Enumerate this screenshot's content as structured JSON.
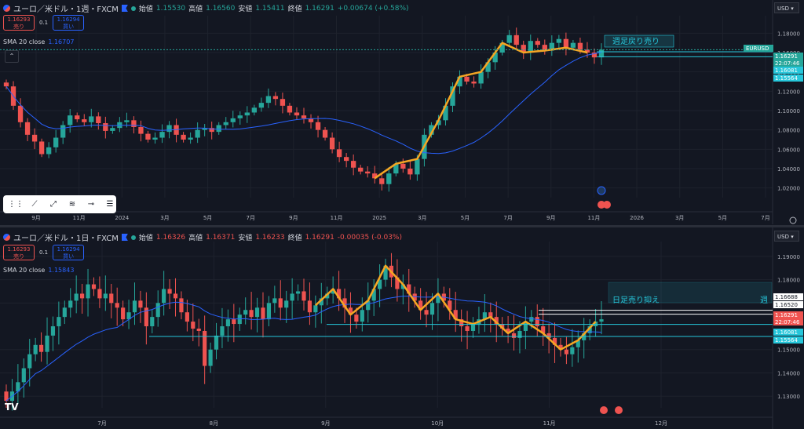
{
  "top": {
    "symbol": "ユーロ／米ドル・1週・FXCM",
    "open_label": "始値",
    "open": "1.15530",
    "high_label": "高値",
    "high": "1.16560",
    "low_label": "安値",
    "low": "1.15411",
    "close_label": "終値",
    "close": "1.16291",
    "change": "+0.00674 (+0.58%)",
    "sell_price": "1.16293",
    "sell_label": "売り",
    "spread": "0.1",
    "buy_price": "1.16294",
    "buy_label": "買い",
    "sma_label": "SMA 20 close",
    "sma_value": "1.16707",
    "currency": "USD"
  },
  "bottom": {
    "symbol": "ユーロ／米ドル・1日・FXCM",
    "open_label": "始値",
    "open": "1.16326",
    "high_label": "高値",
    "high": "1.16371",
    "low_label": "安値",
    "low": "1.16233",
    "close_label": "終値",
    "close": "1.16291",
    "change": "-0.00035 (-0.03%)",
    "sell_price": "1.16293",
    "sell_label": "売り",
    "spread": "0.1",
    "buy_price": "1.16294",
    "buy_label": "買い",
    "sma_label": "SMA 20 close",
    "sma_value": "1.15843",
    "currency": "USD"
  },
  "colors": {
    "bg": "#131722",
    "up": "#26a69a",
    "down": "#ef5350",
    "sma": "#2962ff",
    "zigzag": "#f5a623",
    "hline": "#26c6da",
    "grid": "#1e222d"
  },
  "chart_data": [
    {
      "type": "candlestick",
      "symbol": "EURUSD",
      "timeframe": "1W",
      "x_tick_labels": [
        "9月",
        "11月",
        "2024",
        "3月",
        "5月",
        "7月",
        "9月",
        "11月",
        "2025",
        "3月",
        "5月",
        "7月",
        "9月",
        "11月",
        "2026",
        "3月",
        "5月",
        "7月"
      ],
      "y_tick_labels": [
        "1.18000",
        "1.16000",
        "1.14000",
        "1.12000",
        "1.10000",
        "1.08000",
        "1.06000",
        "1.04000",
        "1.02000"
      ],
      "ylim": [
        1.01,
        1.19
      ],
      "series": [
        {
          "name": "SMA 20 close",
          "last": 1.16707
        }
      ],
      "closes": [
        1.125,
        1.105,
        1.088,
        1.075,
        1.068,
        1.055,
        1.062,
        1.072,
        1.085,
        1.095,
        1.091,
        1.088,
        1.094,
        1.087,
        1.079,
        1.082,
        1.088,
        1.09,
        1.083,
        1.076,
        1.07,
        1.072,
        1.078,
        1.085,
        1.075,
        1.07,
        1.072,
        1.08,
        1.082,
        1.078,
        1.085,
        1.088,
        1.092,
        1.095,
        1.098,
        1.103,
        1.108,
        1.115,
        1.112,
        1.105,
        1.098,
        1.095,
        1.092,
        1.088,
        1.08,
        1.072,
        1.06,
        1.052,
        1.048,
        1.041,
        1.037,
        1.035,
        1.03,
        1.024,
        1.035,
        1.045,
        1.04,
        1.034,
        1.05,
        1.075,
        1.085,
        1.09,
        1.105,
        1.125,
        1.135,
        1.13,
        1.128,
        1.14,
        1.15,
        1.16,
        1.17,
        1.178,
        1.168,
        1.16,
        1.172,
        1.168,
        1.162,
        1.17,
        1.174,
        1.165,
        1.17,
        1.163,
        1.16,
        1.155,
        1.163
      ],
      "annotations": {
        "box_label": "週足戻り売り",
        "price_tags": [
          {
            "text": "EURUSD",
            "color": "#26a69a"
          },
          {
            "text": "1.16291",
            "color": "#26a69a"
          },
          {
            "text": "22:07:46",
            "color": "#26a69a"
          },
          {
            "text": "1.16081",
            "color": "#26c6da"
          },
          {
            "text": "1.15564",
            "color": "#26c6da"
          }
        ]
      }
    },
    {
      "type": "candlestick",
      "symbol": "EURUSD",
      "timeframe": "1D",
      "x_tick_labels": [
        "7月",
        "8月",
        "9月",
        "10月",
        "11月",
        "12月"
      ],
      "y_tick_labels": [
        "1.19000",
        "1.18000",
        "1.17000",
        "1.15000",
        "1.14000",
        "1.13000"
      ],
      "ylim": [
        1.125,
        1.193
      ],
      "series": [
        {
          "name": "SMA 20 close",
          "last": 1.15843
        }
      ],
      "closes": [
        1.128,
        1.132,
        1.136,
        1.142,
        1.148,
        1.152,
        1.149,
        1.156,
        1.16,
        1.164,
        1.168,
        1.171,
        1.174,
        1.172,
        1.178,
        1.176,
        1.172,
        1.174,
        1.17,
        1.168,
        1.163,
        1.166,
        1.171,
        1.168,
        1.16,
        1.164,
        1.17,
        1.176,
        1.174,
        1.172,
        1.166,
        1.162,
        1.159,
        1.158,
        1.143,
        1.15,
        1.156,
        1.16,
        1.163,
        1.161,
        1.165,
        1.167,
        1.164,
        1.168,
        1.163,
        1.17,
        1.172,
        1.168,
        1.171,
        1.174,
        1.175,
        1.171,
        1.166,
        1.169,
        1.172,
        1.174,
        1.176,
        1.172,
        1.168,
        1.165,
        1.162,
        1.167,
        1.171,
        1.176,
        1.18,
        1.186,
        1.181,
        1.176,
        1.178,
        1.174,
        1.171,
        1.167,
        1.165,
        1.17,
        1.174,
        1.171,
        1.167,
        1.163,
        1.16,
        1.158,
        1.161,
        1.163,
        1.166,
        1.164,
        1.161,
        1.159,
        1.157,
        1.155,
        1.158,
        1.162,
        1.164,
        1.16,
        1.157,
        1.155,
        1.152,
        1.15,
        1.148,
        1.151,
        1.154,
        1.157,
        1.16,
        1.162,
        1.163
      ],
      "annotations": {
        "box_label": "日足売り抑え",
        "truncated_text": "週",
        "price_tags": [
          {
            "text": "1.16688",
            "color": "#ffffff"
          },
          {
            "text": "1.16520",
            "color": "#ffffff"
          },
          {
            "text": "1.16291",
            "color": "#ef5350"
          },
          {
            "text": "22:07:46",
            "color": "#ef5350"
          },
          {
            "text": "1.16081",
            "color": "#26c6da"
          },
          {
            "text": "1.15564",
            "color": "#26c6da"
          }
        ]
      }
    }
  ]
}
